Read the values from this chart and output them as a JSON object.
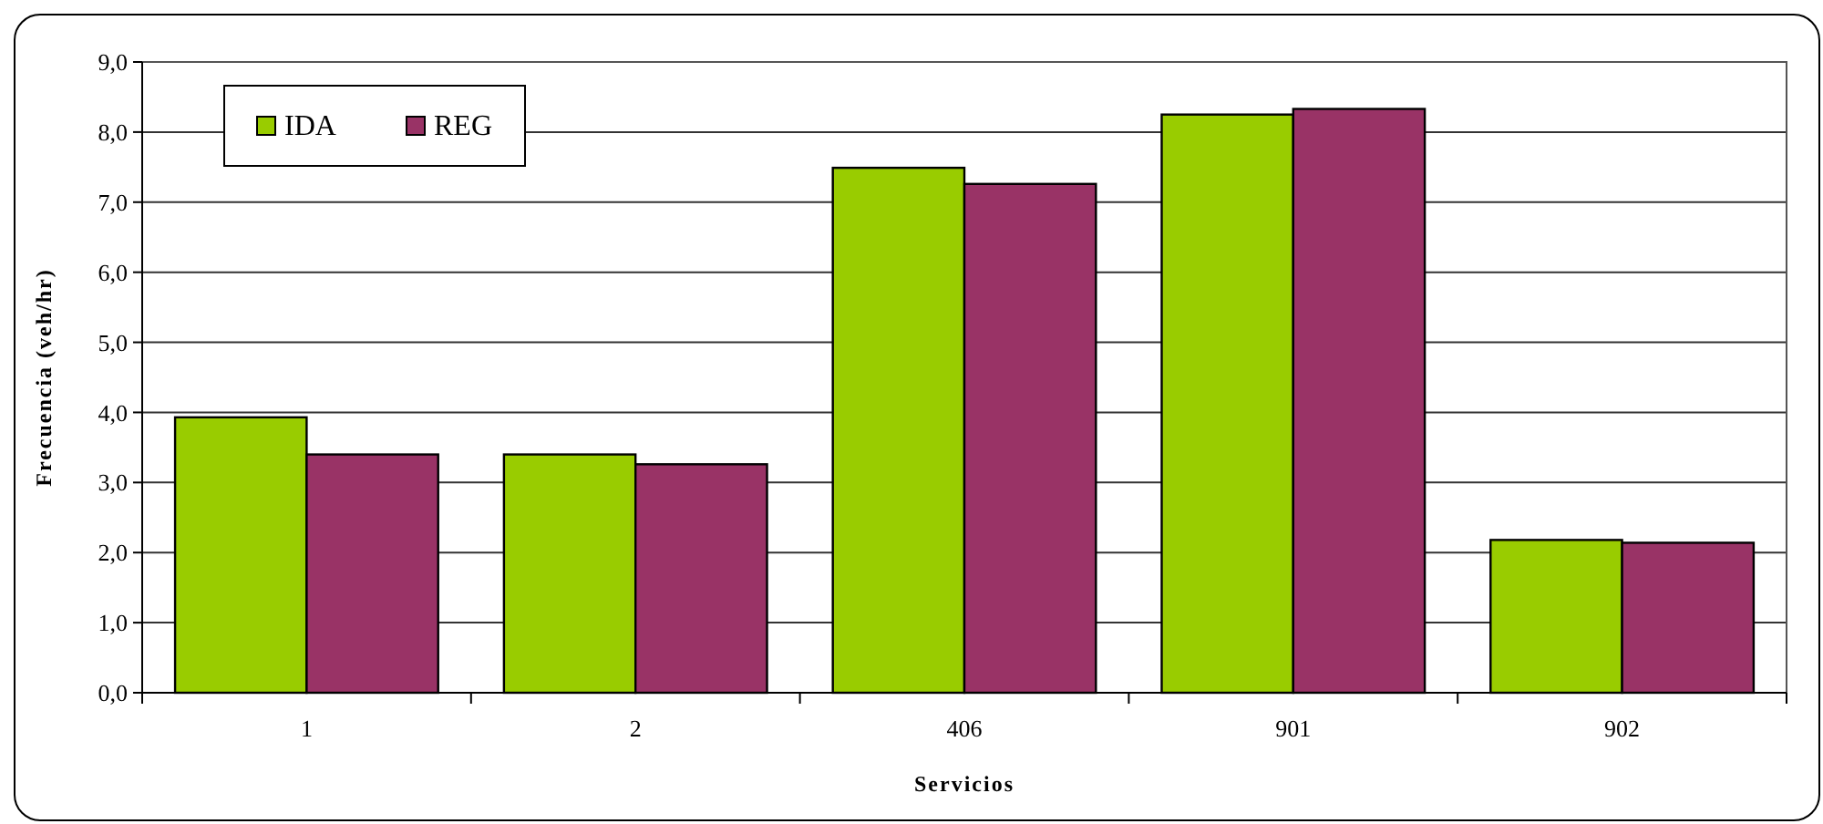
{
  "chart_data": {
    "type": "bar",
    "xlabel": "Servicios",
    "ylabel": "Frecuencia (veh/hr)",
    "categories": [
      "1",
      "2",
      "406",
      "901",
      "902"
    ],
    "series": [
      {
        "name": "IDA",
        "color": "#99cc00",
        "values": [
          3.93,
          3.4,
          7.49,
          8.25,
          2.18
        ]
      },
      {
        "name": "REG",
        "color": "#993366",
        "values": [
          3.4,
          3.26,
          7.26,
          8.33,
          2.14
        ]
      }
    ],
    "ylim": [
      0,
      9
    ],
    "yticks": [
      {
        "value": 0,
        "label": "0,0"
      },
      {
        "value": 1,
        "label": "1,0"
      },
      {
        "value": 2,
        "label": "2,0"
      },
      {
        "value": 3,
        "label": "3,0"
      },
      {
        "value": 4,
        "label": "4,0"
      },
      {
        "value": 5,
        "label": "5,0"
      },
      {
        "value": 6,
        "label": "6,0"
      },
      {
        "value": 7,
        "label": "7,0"
      },
      {
        "value": 8,
        "label": "8,0"
      },
      {
        "value": 9,
        "label": "9,0"
      }
    ],
    "grid": "y",
    "legend": "top left"
  }
}
